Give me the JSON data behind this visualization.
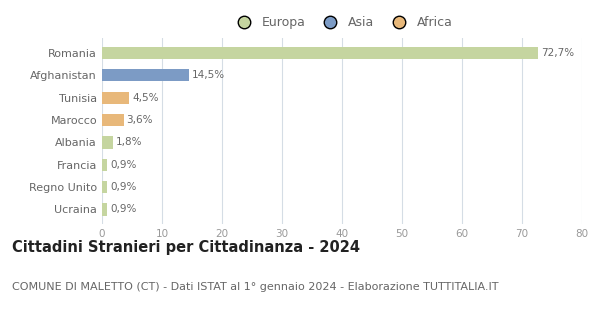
{
  "categories": [
    "Romania",
    "Afghanistan",
    "Tunisia",
    "Marocco",
    "Albania",
    "Francia",
    "Regno Unito",
    "Ucraina"
  ],
  "values": [
    72.7,
    14.5,
    4.5,
    3.6,
    1.8,
    0.9,
    0.9,
    0.9
  ],
  "labels": [
    "72,7%",
    "14,5%",
    "4,5%",
    "3,6%",
    "1,8%",
    "0,9%",
    "0,9%",
    "0,9%"
  ],
  "colors": [
    "#c5d5a0",
    "#7c9bc5",
    "#e8b87a",
    "#e8b87a",
    "#c5d5a0",
    "#c5d5a0",
    "#c5d5a0",
    "#c5d5a0"
  ],
  "legend_labels": [
    "Europa",
    "Asia",
    "Africa"
  ],
  "legend_colors": [
    "#c5d5a0",
    "#7c9bc5",
    "#e8b87a"
  ],
  "xlim": [
    0,
    80
  ],
  "xticks": [
    0,
    10,
    20,
    30,
    40,
    50,
    60,
    70,
    80
  ],
  "title": "Cittadini Stranieri per Cittadinanza - 2024",
  "subtitle": "COMUNE DI MALETTO (CT) - Dati ISTAT al 1° gennaio 2024 - Elaborazione TUTTITALIA.IT",
  "bg_color": "#ffffff",
  "grid_color": "#d5dde5",
  "bar_height": 0.55,
  "title_fontsize": 10.5,
  "subtitle_fontsize": 8,
  "label_color": "#666666",
  "axis_label_color": "#999999"
}
